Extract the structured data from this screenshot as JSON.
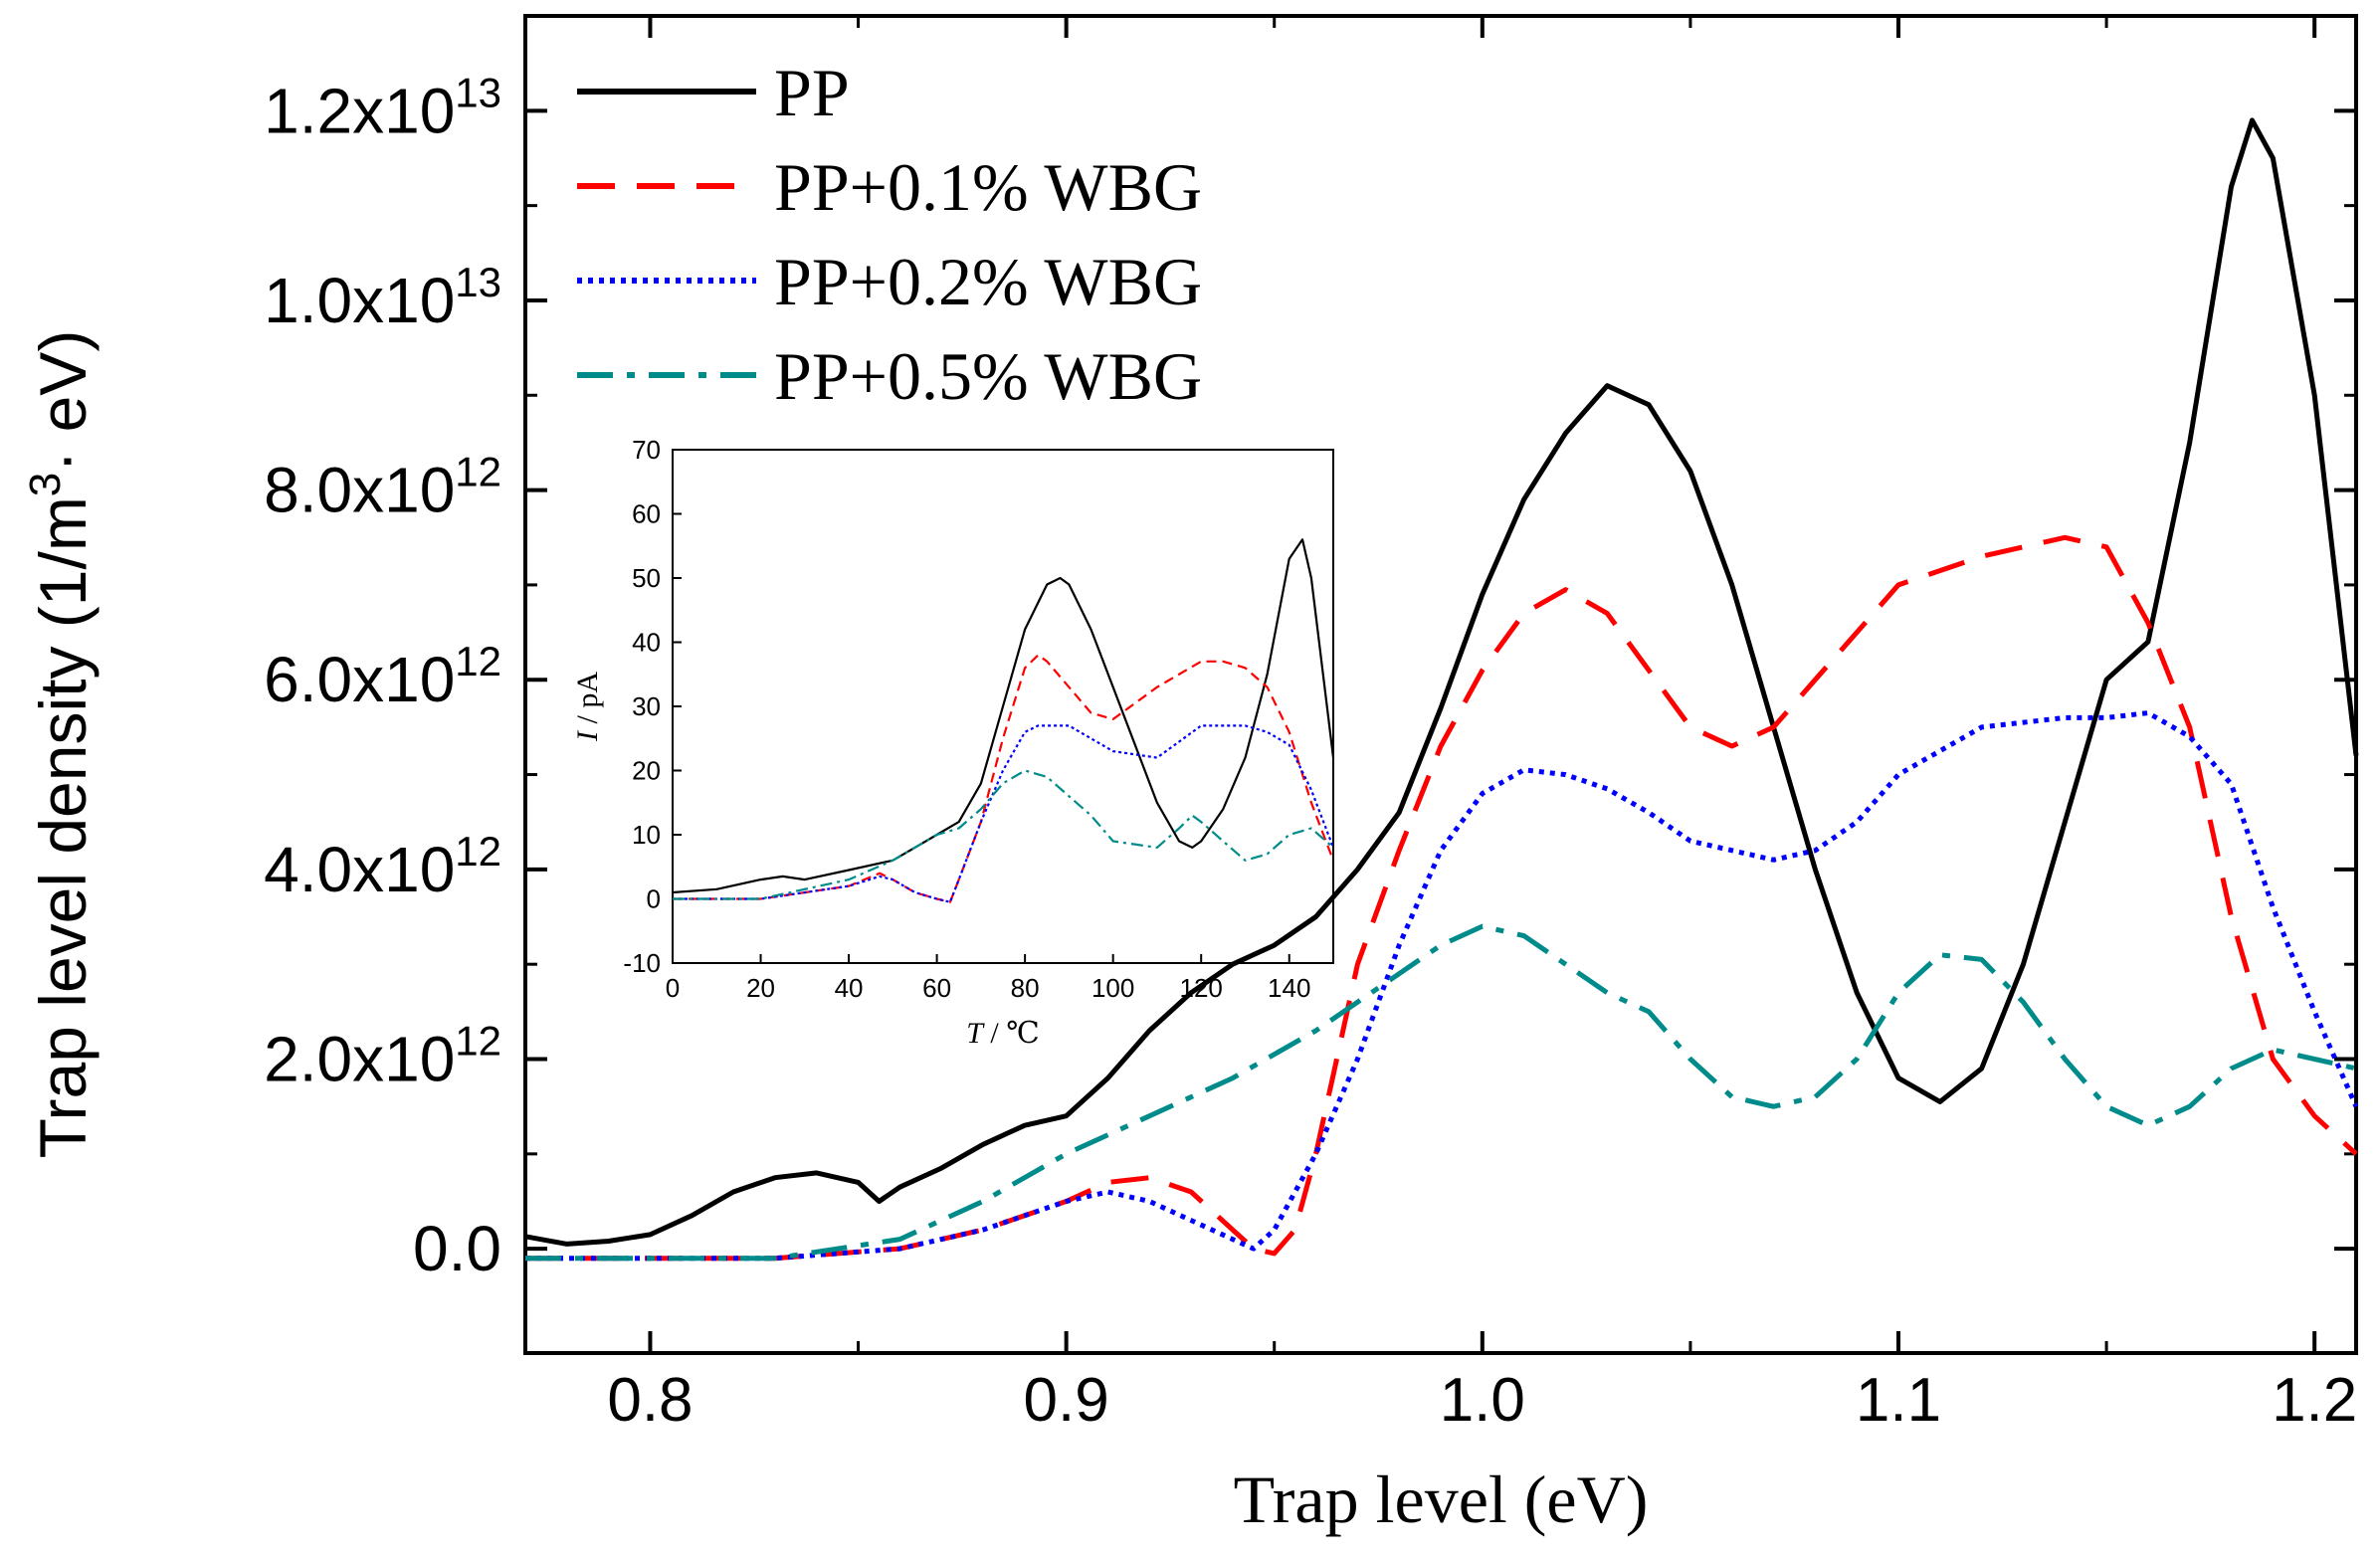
{
  "chart_data": [
    {
      "type": "line",
      "title": "",
      "xlabel": "Trap level (eV)",
      "ylabel": "Trap level density (1/m³· eV)",
      "xlim": [
        0.77,
        1.21
      ],
      "ylim": [
        -1100000000000.0,
        13000000000000.0
      ],
      "xticks": [
        {
          "v": 0.8,
          "label": "0.8"
        },
        {
          "v": 0.9,
          "label": "0.9"
        },
        {
          "v": 1.0,
          "label": "1.0"
        },
        {
          "v": 1.1,
          "label": "1.1"
        },
        {
          "v": 1.2,
          "label": "1.2"
        }
      ],
      "yticks": [
        {
          "v": 0,
          "mant": "0.0",
          "exp": ""
        },
        {
          "v": 2000000000000.0,
          "mant": "2.0x10",
          "exp": "12"
        },
        {
          "v": 4000000000000.0,
          "mant": "4.0x10",
          "exp": "12"
        },
        {
          "v": 6000000000000.0,
          "mant": "6.0x10",
          "exp": "12"
        },
        {
          "v": 8000000000000.0,
          "mant": "8.0x10",
          "exp": "12"
        },
        {
          "v": 10000000000000.0,
          "mant": "1.0x10",
          "exp": "13"
        },
        {
          "v": 12000000000000.0,
          "mant": "1.2x10",
          "exp": "13"
        }
      ],
      "grid": false,
      "legend": "top-left",
      "series": [
        {
          "name": "PP",
          "color": "#000000",
          "style": "solid",
          "x": [
            0.77,
            0.78,
            0.79,
            0.8,
            0.81,
            0.82,
            0.83,
            0.84,
            0.85,
            0.855,
            0.86,
            0.87,
            0.88,
            0.89,
            0.9,
            0.91,
            0.92,
            0.93,
            0.94,
            0.95,
            0.96,
            0.97,
            0.98,
            0.99,
            1.0,
            1.01,
            1.02,
            1.03,
            1.04,
            1.05,
            1.06,
            1.07,
            1.08,
            1.09,
            1.1,
            1.11,
            1.12,
            1.13,
            1.14,
            1.15,
            1.16,
            1.17,
            1.18,
            1.185,
            1.19,
            1.2,
            1.21
          ],
          "y": [
            130000000000.0,
            50000000000.0,
            80000000000.0,
            150000000000.0,
            350000000000.0,
            600000000000.0,
            750000000000.0,
            800000000000.0,
            700000000000.0,
            500000000000.0,
            650000000000.0,
            850000000000.0,
            1100000000000.0,
            1300000000000.0,
            1400000000000.0,
            1800000000000.0,
            2300000000000.0,
            2700000000000.0,
            3000000000000.0,
            3200000000000.0,
            3500000000000.0,
            4000000000000.0,
            4600000000000.0,
            5700000000000.0,
            6900000000000.0,
            7900000000000.0,
            8600000000000.0,
            9100000000000.0,
            8900000000000.0,
            8200000000000.0,
            7000000000000.0,
            5500000000000.0,
            4000000000000.0,
            2700000000000.0,
            1800000000000.0,
            1550000000000.0,
            1900000000000.0,
            3000000000000.0,
            4500000000000.0,
            6000000000000.0,
            6400000000000.0,
            8500000000000.0,
            11200000000000.0,
            11900000000000.0,
            11500000000000.0,
            9000000000000.0,
            5200000000000.0
          ]
        },
        {
          "name": "PP+0.1% WBG",
          "color": "#ff0000",
          "style": "dashed",
          "x": [
            0.77,
            0.8,
            0.83,
            0.86,
            0.88,
            0.9,
            0.91,
            0.92,
            0.93,
            0.94,
            0.945,
            0.95,
            0.955,
            0.96,
            0.965,
            0.97,
            0.98,
            0.99,
            1.0,
            1.01,
            1.02,
            1.03,
            1.04,
            1.05,
            1.06,
            1.07,
            1.08,
            1.09,
            1.1,
            1.12,
            1.14,
            1.15,
            1.16,
            1.17,
            1.18,
            1.19,
            1.2,
            1.21
          ],
          "y": [
            -100000000000.0,
            -100000000000.0,
            -100000000000.0,
            0,
            200000000000.0,
            500000000000.0,
            700000000000.0,
            750000000000.0,
            600000000000.0,
            200000000000.0,
            0,
            -50000000000.0,
            200000000000.0,
            1000000000000.0,
            2000000000000.0,
            3000000000000.0,
            4200000000000.0,
            5300000000000.0,
            6100000000000.0,
            6700000000000.0,
            6950000000000.0,
            6700000000000.0,
            6100000000000.0,
            5500000000000.0,
            5300000000000.0,
            5500000000000.0,
            6000000000000.0,
            6500000000000.0,
            7000000000000.0,
            7300000000000.0,
            7500000000000.0,
            7400000000000.0,
            6600000000000.0,
            5500000000000.0,
            3500000000000.0,
            2000000000000.0,
            1400000000000.0,
            1000000000000.0
          ]
        },
        {
          "name": "PP+0.2% WBG",
          "color": "#0000ff",
          "style": "dotted",
          "x": [
            0.77,
            0.8,
            0.83,
            0.86,
            0.88,
            0.9,
            0.91,
            0.92,
            0.93,
            0.94,
            0.945,
            0.95,
            0.96,
            0.97,
            0.98,
            0.99,
            1.0,
            1.01,
            1.02,
            1.03,
            1.04,
            1.05,
            1.06,
            1.07,
            1.08,
            1.09,
            1.1,
            1.12,
            1.14,
            1.15,
            1.16,
            1.17,
            1.18,
            1.19,
            1.2,
            1.21
          ],
          "y": [
            -100000000000.0,
            -100000000000.0,
            -100000000000.0,
            0,
            200000000000.0,
            500000000000.0,
            600000000000.0,
            500000000000.0,
            300000000000.0,
            100000000000.0,
            0,
            200000000000.0,
            1000000000000.0,
            2000000000000.0,
            3200000000000.0,
            4200000000000.0,
            4800000000000.0,
            5050000000000.0,
            5000000000000.0,
            4850000000000.0,
            4600000000000.0,
            4300000000000.0,
            4200000000000.0,
            4100000000000.0,
            4200000000000.0,
            4500000000000.0,
            5000000000000.0,
            5500000000000.0,
            5600000000000.0,
            5600000000000.0,
            5650000000000.0,
            5400000000000.0,
            4900000000000.0,
            3600000000000.0,
            2500000000000.0,
            1500000000000.0
          ]
        },
        {
          "name": "PP+0.5% WBG",
          "color": "#008b8b",
          "style": "dashdot",
          "x": [
            0.77,
            0.8,
            0.83,
            0.86,
            0.88,
            0.9,
            0.92,
            0.94,
            0.96,
            0.98,
            0.99,
            1.0,
            1.01,
            1.02,
            1.03,
            1.04,
            1.05,
            1.06,
            1.07,
            1.08,
            1.09,
            1.1,
            1.11,
            1.12,
            1.13,
            1.14,
            1.15,
            1.16,
            1.17,
            1.18,
            1.19,
            1.2,
            1.21
          ],
          "y": [
            -100000000000.0,
            -100000000000.0,
            -100000000000.0,
            100000000000.0,
            500000000000.0,
            1000000000000.0,
            1400000000000.0,
            1800000000000.0,
            2300000000000.0,
            2900000000000.0,
            3200000000000.0,
            3400000000000.0,
            3300000000000.0,
            3000000000000.0,
            2700000000000.0,
            2500000000000.0,
            2000000000000.0,
            1600000000000.0,
            1500000000000.0,
            1600000000000.0,
            2000000000000.0,
            2700000000000.0,
            3100000000000.0,
            3050000000000.0,
            2600000000000.0,
            2000000000000.0,
            1500000000000.0,
            1300000000000.0,
            1500000000000.0,
            1900000000000.0,
            2100000000000.0,
            2000000000000.0,
            1900000000000.0
          ]
        }
      ]
    },
    {
      "type": "line",
      "title": "",
      "xlabel": "T / ℃",
      "ylabel": "I / pA",
      "xlim": [
        0,
        150
      ],
      "ylim": [
        -10,
        70
      ],
      "xticks": [
        0,
        20,
        40,
        60,
        80,
        100,
        120,
        140
      ],
      "yticks": [
        -10,
        0,
        10,
        20,
        30,
        40,
        50,
        60,
        70
      ],
      "grid": false,
      "series": [
        {
          "color": "#000000",
          "style": "solid",
          "x": [
            0,
            10,
            20,
            25,
            30,
            40,
            50,
            55,
            60,
            65,
            70,
            75,
            80,
            85,
            88,
            90,
            95,
            100,
            105,
            110,
            115,
            118,
            120,
            125,
            130,
            135,
            140,
            143,
            145,
            150
          ],
          "y": [
            1,
            1.5,
            3,
            3.5,
            3,
            4.5,
            6,
            8,
            10,
            12,
            18,
            30,
            42,
            49,
            50,
            49,
            42,
            33,
            24,
            15,
            9,
            8,
            9,
            14,
            22,
            35,
            53,
            56,
            50,
            22
          ]
        },
        {
          "color": "#ff0000",
          "style": "dashed",
          "x": [
            0,
            20,
            40,
            47,
            50,
            55,
            60,
            63,
            65,
            70,
            75,
            80,
            83,
            85,
            90,
            95,
            100,
            110,
            120,
            125,
            130,
            135,
            140,
            145,
            150
          ],
          "y": [
            0,
            0,
            2,
            4,
            3,
            1,
            0,
            -0.5,
            3,
            12,
            25,
            36,
            38,
            37,
            33,
            29,
            28,
            33,
            37,
            37,
            36,
            33,
            26,
            15,
            6
          ]
        },
        {
          "color": "#0000ff",
          "style": "dotted",
          "x": [
            0,
            20,
            40,
            47,
            50,
            55,
            60,
            63,
            65,
            70,
            75,
            80,
            83,
            85,
            90,
            95,
            100,
            110,
            120,
            125,
            130,
            135,
            140,
            145,
            150
          ],
          "y": [
            0,
            0,
            2,
            3.5,
            3,
            1,
            0,
            -0.5,
            3,
            12,
            20,
            26,
            27,
            27,
            27,
            25,
            23,
            22,
            27,
            27,
            27,
            26,
            24,
            17,
            8
          ]
        },
        {
          "color": "#008b8b",
          "style": "dashdot",
          "x": [
            0,
            20,
            40,
            50,
            60,
            65,
            70,
            75,
            80,
            85,
            90,
            95,
            100,
            110,
            115,
            118,
            120,
            125,
            130,
            135,
            140,
            145,
            150
          ],
          "y": [
            0,
            0,
            3,
            6,
            10,
            11,
            14,
            18,
            20,
            19,
            16,
            13,
            9,
            8,
            11,
            13,
            12,
            9,
            6,
            7,
            10,
            11,
            8
          ]
        }
      ]
    }
  ]
}
